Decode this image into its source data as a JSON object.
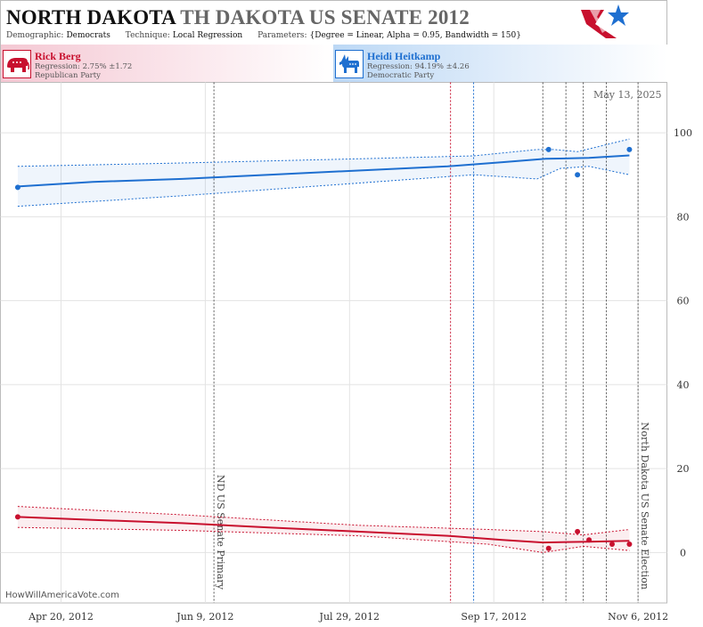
{
  "header": {
    "state": "NORTH DAKOTA",
    "race": "TH DAKOTA US SENATE 2012",
    "demographic_label": "Demographic:",
    "demographic": "Democrats",
    "technique_label": "Technique:",
    "technique": "Local Regression",
    "parameters_label": "Parameters:",
    "parameters": "{Degree = Linear, Alpha = 0.95, Bandwidth = 150}"
  },
  "candidates": [
    {
      "name": "Rick Berg",
      "regression": "Regression: 2.75% ±1.72",
      "party": "Republican Party",
      "icon": "elephant-icon",
      "color": "#c8102e"
    },
    {
      "name": "Heidi Heitkamp",
      "regression": "Regression: 94.19% ±4.26",
      "party": "Democratic Party",
      "icon": "donkey-icon",
      "color": "#1e6fd0"
    }
  ],
  "watermark": "HowWillAmericaVote.com",
  "date_stamp": "May 13, 2025",
  "chart_data": {
    "type": "line",
    "x_axis": {
      "type": "date",
      "min": "2012-03-30",
      "max": "2012-11-16",
      "ticks": [
        {
          "date": "2012-04-20",
          "label": "Apr 20, 2012"
        },
        {
          "date": "2012-06-09",
          "label": "Jun 9, 2012"
        },
        {
          "date": "2012-07-29",
          "label": "Jul 29, 2012"
        },
        {
          "date": "2012-09-17",
          "label": "Sep 17, 2012"
        },
        {
          "date": "2012-11-06",
          "label": "Nov 6, 2012"
        }
      ]
    },
    "y_axis": {
      "min": -12,
      "max": 112,
      "ticks": [
        0,
        20,
        40,
        60,
        80,
        100
      ],
      "position": "right"
    },
    "grid": true,
    "events": [
      {
        "date": "2012-06-12",
        "label": "ND US Senate Primary",
        "color": "#555555"
      },
      {
        "date": "2012-11-06",
        "label": "North Dakota US Senate Election",
        "color": "#555555"
      }
    ],
    "poll_lines": [
      {
        "date": "2012-09-02",
        "color": "#c8102e"
      },
      {
        "date": "2012-09-10",
        "color": "#1e6fd0"
      },
      {
        "date": "2012-10-04",
        "color": "#555555"
      },
      {
        "date": "2012-10-12",
        "color": "#555555"
      },
      {
        "date": "2012-10-18",
        "color": "#555555"
      },
      {
        "date": "2012-10-26",
        "color": "#555555"
      }
    ],
    "series": [
      {
        "name": "Heidi Heitkamp",
        "color": "#1e6fd0",
        "trend": [
          {
            "x": "2012-04-05",
            "y": 87.2
          },
          {
            "x": "2012-05-01",
            "y": 88.3
          },
          {
            "x": "2012-06-01",
            "y": 89.0
          },
          {
            "x": "2012-07-01",
            "y": 90.0
          },
          {
            "x": "2012-08-01",
            "y": 91.0
          },
          {
            "x": "2012-09-01",
            "y": 92.0
          },
          {
            "x": "2012-09-20",
            "y": 93.0
          },
          {
            "x": "2012-10-05",
            "y": 93.8
          },
          {
            "x": "2012-10-20",
            "y": 94.0
          },
          {
            "x": "2012-11-03",
            "y": 94.6
          }
        ],
        "upper": [
          {
            "x": "2012-04-05",
            "y": 92.0
          },
          {
            "x": "2012-06-01",
            "y": 92.8
          },
          {
            "x": "2012-08-01",
            "y": 93.8
          },
          {
            "x": "2012-09-10",
            "y": 94.5
          },
          {
            "x": "2012-10-02",
            "y": 96.0
          },
          {
            "x": "2012-10-08",
            "y": 96.0
          },
          {
            "x": "2012-10-16",
            "y": 95.5
          },
          {
            "x": "2012-10-22",
            "y": 96.5
          },
          {
            "x": "2012-11-03",
            "y": 98.5
          }
        ],
        "lower": [
          {
            "x": "2012-04-05",
            "y": 82.5
          },
          {
            "x": "2012-06-01",
            "y": 85.0
          },
          {
            "x": "2012-08-01",
            "y": 88.0
          },
          {
            "x": "2012-09-10",
            "y": 90.0
          },
          {
            "x": "2012-10-02",
            "y": 89.0
          },
          {
            "x": "2012-10-10",
            "y": 91.5
          },
          {
            "x": "2012-10-20",
            "y": 92.0
          },
          {
            "x": "2012-11-03",
            "y": 90.0
          }
        ],
        "points": [
          {
            "x": "2012-04-05",
            "y": 87.0
          },
          {
            "x": "2012-10-06",
            "y": 96.0
          },
          {
            "x": "2012-10-16",
            "y": 90.0
          },
          {
            "x": "2012-11-03",
            "y": 96.0
          }
        ]
      },
      {
        "name": "Rick Berg",
        "color": "#c8102e",
        "trend": [
          {
            "x": "2012-04-05",
            "y": 8.5
          },
          {
            "x": "2012-05-01",
            "y": 7.8
          },
          {
            "x": "2012-06-01",
            "y": 7.0
          },
          {
            "x": "2012-07-01",
            "y": 6.0
          },
          {
            "x": "2012-08-01",
            "y": 5.0
          },
          {
            "x": "2012-09-01",
            "y": 4.0
          },
          {
            "x": "2012-09-20",
            "y": 3.0
          },
          {
            "x": "2012-10-04",
            "y": 2.4
          },
          {
            "x": "2012-10-20",
            "y": 2.6
          },
          {
            "x": "2012-11-03",
            "y": 2.8
          }
        ],
        "upper": [
          {
            "x": "2012-04-05",
            "y": 11.0
          },
          {
            "x": "2012-06-01",
            "y": 9.0
          },
          {
            "x": "2012-08-01",
            "y": 6.5
          },
          {
            "x": "2012-09-15",
            "y": 5.5
          },
          {
            "x": "2012-10-04",
            "y": 5.0
          },
          {
            "x": "2012-10-18",
            "y": 4.2
          },
          {
            "x": "2012-11-03",
            "y": 5.5
          }
        ],
        "lower": [
          {
            "x": "2012-04-05",
            "y": 6.0
          },
          {
            "x": "2012-06-01",
            "y": 5.3
          },
          {
            "x": "2012-08-01",
            "y": 4.0
          },
          {
            "x": "2012-09-15",
            "y": 2.0
          },
          {
            "x": "2012-10-04",
            "y": 0.0
          },
          {
            "x": "2012-10-18",
            "y": 1.5
          },
          {
            "x": "2012-11-03",
            "y": 0.5
          }
        ],
        "points": [
          {
            "x": "2012-04-05",
            "y": 8.5
          },
          {
            "x": "2012-10-06",
            "y": 1.0
          },
          {
            "x": "2012-10-16",
            "y": 5.0
          },
          {
            "x": "2012-10-20",
            "y": 3.0
          },
          {
            "x": "2012-10-28",
            "y": 2.0
          },
          {
            "x": "2012-11-03",
            "y": 2.0
          }
        ]
      }
    ]
  }
}
